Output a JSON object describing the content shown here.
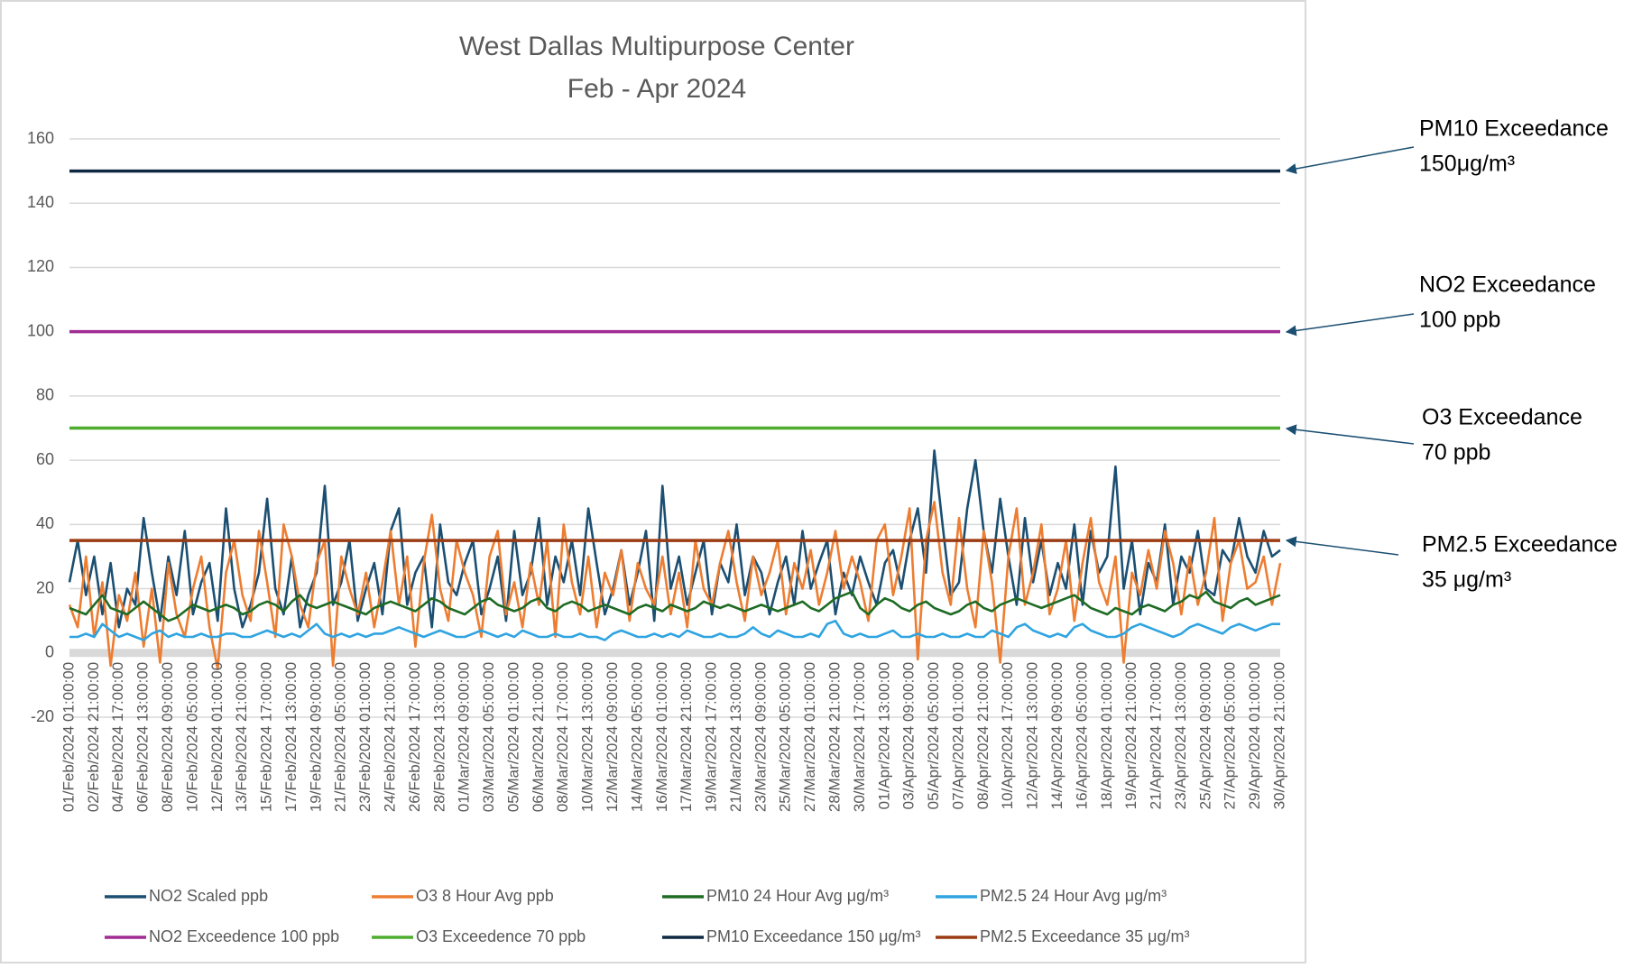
{
  "chart_data": {
    "type": "line",
    "title": "West Dallas Multipurpose Center",
    "subtitle": "Feb - Apr 2024",
    "ylim": [
      -20,
      170
    ],
    "yticks": [
      -20,
      0,
      20,
      40,
      60,
      80,
      100,
      120,
      140,
      160
    ],
    "grid": true,
    "legend": "bottom",
    "categories": [
      "01/Feb/2024 01:00:00",
      null,
      null,
      "02/Feb/2024 21:00:00",
      null,
      null,
      "04/Feb/2024 17:00:00",
      null,
      null,
      "06/Feb/2024 13:00:00",
      null,
      null,
      "08/Feb/2024 09:00:00",
      null,
      null,
      "10/Feb/2024 05:00:00",
      null,
      null,
      "12/Feb/2024 01:00:00",
      null,
      null,
      "13/Feb/2024 21:00:00",
      null,
      null,
      "15/Feb/2024 17:00:00",
      null,
      null,
      "17/Feb/2024 13:00:00",
      null,
      null,
      "19/Feb/2024 09:00:00",
      null,
      null,
      "21/Feb/2024 05:00:00",
      null,
      null,
      "23/Feb/2024 01:00:00",
      null,
      null,
      "24/Feb/2024 21:00:00",
      null,
      null,
      "26/Feb/2024 17:00:00",
      null,
      null,
      "28/Feb/2024 13:00:00",
      null,
      null,
      "01/Mar/2024 09:00:00",
      null,
      null,
      "03/Mar/2024 05:00:00",
      null,
      null,
      "05/Mar/2024 01:00:00",
      null,
      null,
      "06/Mar/2024 21:00:00",
      null,
      null,
      "08/Mar/2024 17:00:00",
      null,
      null,
      "10/Mar/2024 13:00:00",
      null,
      null,
      "12/Mar/2024 09:00:00",
      null,
      null,
      "14/Mar/2024 05:00:00",
      null,
      null,
      "16/Mar/2024 01:00:00",
      null,
      null,
      "17/Mar/2024 21:00:00",
      null,
      null,
      "19/Mar/2024 17:00:00",
      null,
      null,
      "21/Mar/2024 13:00:00",
      null,
      null,
      "23/Mar/2024 09:00:00",
      null,
      null,
      "25/Mar/2024 05:00:00",
      null,
      null,
      "27/Mar/2024 01:00:00",
      null,
      null,
      "28/Mar/2024 21:00:00",
      null,
      null,
      "30/Mar/2024 17:00:00",
      null,
      null,
      "01/Apr/2024 13:00:00",
      null,
      null,
      "03/Apr/2024 09:00:00",
      null,
      null,
      "05/Apr/2024 05:00:00",
      null,
      null,
      "07/Apr/2024 01:00:00",
      null,
      null,
      "08/Apr/2024 21:00:00",
      null,
      null,
      "10/Apr/2024 17:00:00",
      null,
      null,
      "12/Apr/2024 13:00:00",
      null,
      null,
      "14/Apr/2024 09:00:00",
      null,
      null,
      "16/Apr/2024 05:00:00",
      null,
      null,
      "18/Apr/2024 01:00:00",
      null,
      null,
      "19/Apr/2024 21:00:00",
      null,
      null,
      "21/Apr/2024 17:00:00",
      null,
      null,
      "23/Apr/2024 13:00:00",
      null,
      null,
      "25/Apr/2024 09:00:00",
      null,
      null,
      "27/Apr/2024 05:00:00",
      null,
      null,
      "29/Apr/2024 01:00:00",
      null,
      null,
      "30/Apr/2024 21:00:00"
    ],
    "series": [
      {
        "name": "NO2 Scaled ppb",
        "color": "#1b4f72",
        "values": [
          22,
          35,
          18,
          30,
          12,
          28,
          8,
          20,
          15,
          42,
          25,
          10,
          30,
          18,
          38,
          12,
          22,
          28,
          10,
          45,
          20,
          8,
          15,
          25,
          48,
          20,
          12,
          30,
          8,
          18,
          25,
          52,
          15,
          22,
          35,
          10,
          20,
          28,
          12,
          38,
          45,
          15,
          25,
          30,
          8,
          40,
          22,
          18,
          28,
          35,
          12,
          20,
          30,
          10,
          38,
          18,
          25,
          42,
          15,
          30,
          22,
          35,
          18,
          45,
          28,
          12,
          20,
          32,
          15,
          25,
          38,
          10,
          52,
          20,
          30,
          15,
          25,
          35,
          12,
          28,
          22,
          40,
          18,
          30,
          25,
          12,
          22,
          30,
          15,
          38,
          20,
          28,
          35,
          12,
          25,
          18,
          30,
          22,
          15,
          28,
          32,
          20,
          35,
          45,
          25,
          63,
          40,
          18,
          22,
          45,
          60,
          38,
          25,
          48,
          30,
          15,
          42,
          22,
          35,
          18,
          28,
          20,
          40,
          15,
          38,
          25,
          30,
          58,
          20,
          35,
          12,
          28,
          22,
          40,
          15,
          30,
          25,
          38,
          20,
          18,
          32,
          28,
          42,
          30,
          25,
          38,
          30,
          32
        ]
      },
      {
        "name": "O3 8 Hour Avg ppb",
        "color": "#ed7d31",
        "values": [
          15,
          8,
          30,
          5,
          22,
          -4,
          18,
          10,
          25,
          2,
          20,
          -3,
          28,
          12,
          5,
          20,
          30,
          8,
          -5,
          25,
          35,
          18,
          10,
          38,
          22,
          5,
          40,
          30,
          15,
          8,
          28,
          35,
          -4,
          30,
          20,
          12,
          25,
          8,
          22,
          38,
          15,
          30,
          2,
          28,
          43,
          20,
          10,
          35,
          25,
          18,
          5,
          30,
          38,
          12,
          22,
          8,
          28,
          15,
          35,
          5,
          40,
          22,
          12,
          30,
          8,
          25,
          18,
          32,
          10,
          28,
          20,
          15,
          30,
          12,
          25,
          8,
          35,
          20,
          15,
          28,
          38,
          22,
          10,
          30,
          18,
          25,
          35,
          12,
          28,
          20,
          32,
          15,
          25,
          38,
          20,
          30,
          22,
          10,
          35,
          40,
          18,
          30,
          45,
          -2,
          35,
          47,
          25,
          15,
          42,
          20,
          8,
          38,
          22,
          -3,
          30,
          45,
          15,
          25,
          40,
          12,
          20,
          35,
          10,
          28,
          42,
          22,
          15,
          30,
          -3,
          25,
          18,
          32,
          20,
          38,
          28,
          12,
          30,
          15,
          25,
          42,
          10,
          28,
          35,
          20,
          22,
          30,
          15,
          28
        ]
      },
      {
        "name": "PM10 24 Hour Avg μg/m³",
        "color": "#1e6b24",
        "values": [
          14,
          13,
          12,
          15,
          18,
          14,
          13,
          12,
          14,
          16,
          14,
          12,
          10,
          11,
          13,
          15,
          14,
          13,
          14,
          15,
          14,
          12,
          13,
          15,
          16,
          15,
          13,
          16,
          18,
          15,
          14,
          15,
          16,
          15,
          14,
          13,
          12,
          14,
          15,
          16,
          15,
          14,
          13,
          15,
          17,
          16,
          14,
          13,
          12,
          14,
          16,
          17,
          15,
          14,
          13,
          14,
          16,
          17,
          14,
          13,
          15,
          16,
          15,
          13,
          14,
          15,
          14,
          13,
          12,
          14,
          15,
          14,
          13,
          15,
          14,
          13,
          14,
          16,
          15,
          14,
          15,
          14,
          13,
          14,
          15,
          14,
          13,
          14,
          15,
          16,
          14,
          13,
          15,
          17,
          18,
          19,
          14,
          12,
          15,
          17,
          16,
          14,
          13,
          15,
          16,
          14,
          13,
          12,
          13,
          15,
          16,
          14,
          13,
          15,
          16,
          17,
          16,
          15,
          14,
          15,
          16,
          17,
          18,
          16,
          14,
          13,
          12,
          14,
          13,
          12,
          14,
          15,
          14,
          13,
          15,
          16,
          18,
          17,
          19,
          16,
          15,
          14,
          16,
          17,
          15,
          16,
          17,
          18
        ]
      },
      {
        "name": "PM2.5 24 Hour Avg μg/m³",
        "color": "#2fa4e0",
        "values": [
          5,
          5,
          6,
          5,
          9,
          7,
          5,
          6,
          5,
          4,
          6,
          7,
          5,
          6,
          5,
          5,
          6,
          5,
          5,
          6,
          6,
          5,
          5,
          6,
          7,
          6,
          5,
          6,
          5,
          7,
          9,
          6,
          5,
          6,
          5,
          6,
          5,
          6,
          6,
          7,
          8,
          7,
          6,
          5,
          6,
          7,
          6,
          5,
          5,
          6,
          7,
          6,
          5,
          6,
          5,
          7,
          6,
          5,
          5,
          6,
          5,
          5,
          6,
          5,
          5,
          4,
          6,
          7,
          6,
          5,
          5,
          6,
          5,
          6,
          5,
          7,
          6,
          5,
          5,
          6,
          5,
          5,
          6,
          8,
          6,
          5,
          7,
          6,
          5,
          5,
          6,
          5,
          9,
          10,
          6,
          5,
          6,
          5,
          5,
          6,
          7,
          5,
          5,
          6,
          5,
          5,
          6,
          5,
          5,
          6,
          5,
          5,
          7,
          6,
          5,
          8,
          9,
          7,
          6,
          5,
          6,
          5,
          8,
          9,
          7,
          6,
          5,
          5,
          6,
          8,
          9,
          8,
          7,
          6,
          5,
          6,
          8,
          9,
          8,
          7,
          6,
          8,
          9,
          8,
          7,
          8,
          9,
          9
        ]
      }
    ],
    "hlines": [
      {
        "name": "NO2 Exceedence 100 ppb",
        "color": "#a02b93",
        "value": 100
      },
      {
        "name": "O3 Exceedence 70 ppb",
        "color": "#4ead2f",
        "value": 70
      },
      {
        "name": "PM10 Exceedance 150 μg/m³",
        "color": "#0e2841",
        "value": 150
      },
      {
        "name": "PM2.5 Exceedance 35 μg/m³",
        "color": "#9b3b12",
        "value": 35
      }
    ],
    "annotations": [
      [
        "PM10 Exceedance",
        "150μg/m³"
      ],
      [
        "NO2 Exceedance",
        "100 ppb"
      ],
      [
        "O3 Exceedance",
        "70 ppb"
      ],
      [
        "PM2.5 Exceedance",
        "35 μg/m³"
      ]
    ]
  }
}
